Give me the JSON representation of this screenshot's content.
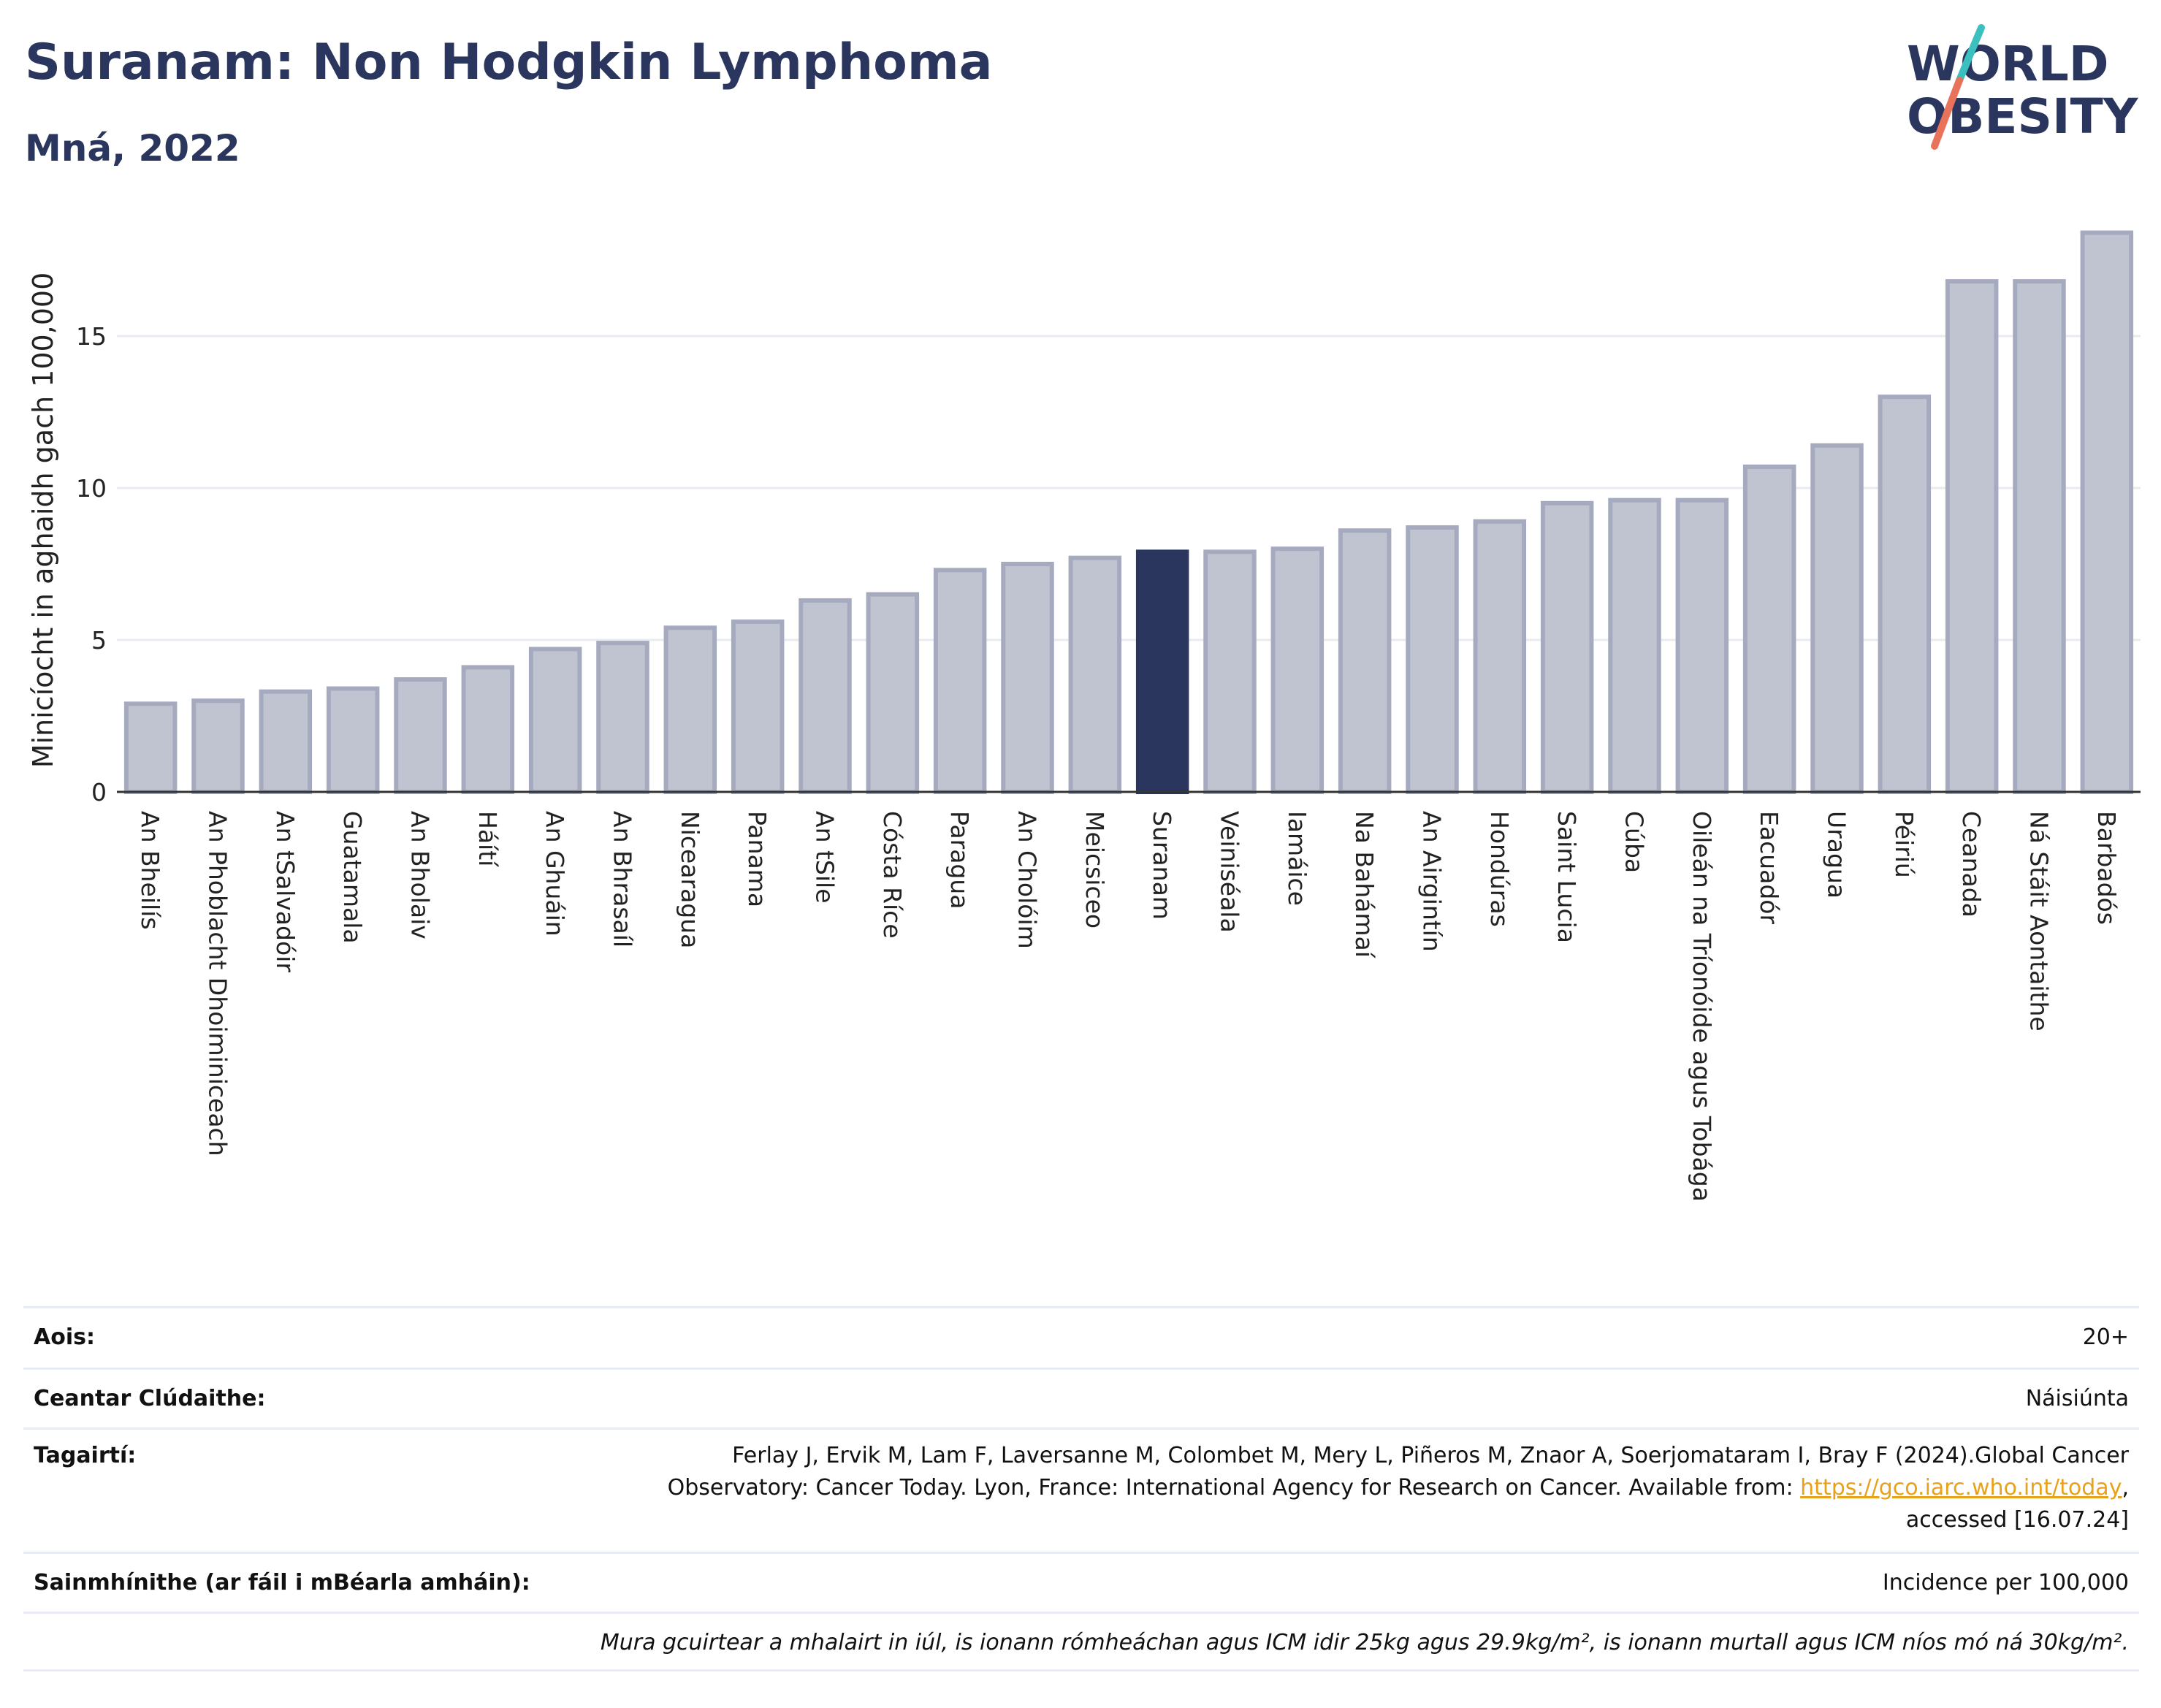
{
  "header": {
    "title": "Suranam: Non Hodgkin Lymphoma",
    "subtitle": "Mná, 2022",
    "logo_line1": "WORLD",
    "logo_line2": "OBESITY"
  },
  "colors": {
    "title": "#2b365f",
    "bar": "#c0c4d1",
    "bar_border": "#a6aabf",
    "highlight": "#2b365f",
    "link": "#e8a21a",
    "logo_teal": "#3bbfbf",
    "logo_coral": "#e8735a"
  },
  "chart_data": {
    "type": "bar",
    "title": "Suranam: Non Hodgkin Lymphoma",
    "subtitle": "Mná, 2022",
    "ylabel": "Minicíocht in aghaidh gach 100,000",
    "ylim": [
      0,
      19.5
    ],
    "yticks": [
      0,
      5,
      10,
      15
    ],
    "grid": true,
    "highlight": "Suranam",
    "categories": [
      "An Bheilís",
      "An Phoblacht Dhoiminiceach",
      "An tSalvadóir",
      "Guatamala",
      "An Bholaiv",
      "Háítí",
      "An Ghuáin",
      "An Bhrasaíl",
      "Nicearagua",
      "Panama",
      "An tSile",
      "Cósta Ríce",
      "Paragua",
      "An Cholóim",
      "Meicsiceo",
      "Suranam",
      "Veiniséala",
      "Iamáice",
      "Na Bahámaí",
      "An Airgintín",
      "Hondúras",
      "Saint Lucia",
      "Cúba",
      "Oileán na Tríonóide agus Tobága",
      "Eacuadór",
      "Uragua",
      "Péiriú",
      "Ceanada",
      "Ná Stáit Aontaithe",
      "Barbadós"
    ],
    "values": [
      2.9,
      3.0,
      3.3,
      3.4,
      3.7,
      4.1,
      4.7,
      4.9,
      5.4,
      5.6,
      6.3,
      6.5,
      7.3,
      7.5,
      7.7,
      7.9,
      7.9,
      8.0,
      8.6,
      8.7,
      8.9,
      9.5,
      9.6,
      9.6,
      10.7,
      11.4,
      13.0,
      16.8,
      16.8,
      18.4
    ]
  },
  "info": {
    "age_label": "Aois:",
    "age_value": "20+",
    "area_label": "Ceantar Clúdaithe:",
    "area_value": "Náisiúnta",
    "ref_label": "Tagairtí:",
    "ref_line1": "Ferlay J, Ervik M, Lam F, Laversanne M, Colombet M, Mery L, Piñeros M, Znaor A, Soerjomataram I, Bray F (2024).Global Cancer",
    "ref_line2_pre": "Observatory: Cancer Today. Lyon, France: International Agency for Research on Cancer. Available from: ",
    "ref_link": "https://gco.iarc.who.int/today",
    "ref_line2_post": ",",
    "ref_line3": "accessed [16.07.24]",
    "def_label": "Sainmhínithe (ar fáil i mBéarla amháin):",
    "def_value": "Incidence per 100,000",
    "note": "Mura gcuirtear a mhalairt in iúl, is ionann rómheáchan agus ICM idir 25kg agus 29.9kg/m², is ionann murtall agus ICM níos mó ná 30kg/m²."
  }
}
